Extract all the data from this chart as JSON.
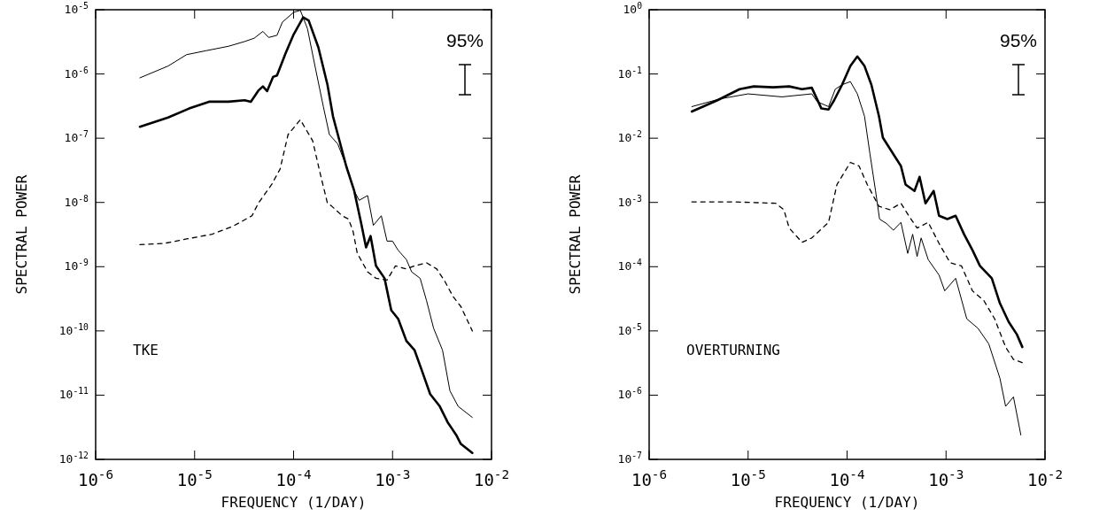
{
  "chart_data": [
    {
      "type": "line",
      "xlabel": "FREQUENCY (1/DAY)",
      "ylabel": "SPECTRAL POWER",
      "log": "xy",
      "xlim": [
        1e-06,
        0.01
      ],
      "ylim": [
        1e-12,
        1e-05
      ],
      "xticks": [
        {
          "value": 1e-06,
          "label": "10$^{-6}$"
        },
        {
          "value": 1e-05,
          "label": "10$^{-5}$"
        },
        {
          "value": 0.0001,
          "label": "10$^{-4}$"
        },
        {
          "value": 0.001,
          "label": "10$^{-3}$"
        },
        {
          "value": 0.01,
          "label": "10$^{-2}$"
        }
      ],
      "yticks": [
        {
          "value": 1e-12,
          "label": "10$^{-12}$"
        },
        {
          "value": 1e-11,
          "label": "10$^{-11}$"
        },
        {
          "value": 1e-10,
          "label": "10$^{-10}$"
        },
        {
          "value": 1e-09,
          "label": "10$^{-9}$"
        },
        {
          "value": 1e-08,
          "label": "10$^{-8}$"
        },
        {
          "value": 1e-07,
          "label": "10$^{-7}$"
        },
        {
          "value": 1e-06,
          "label": "10$^{-6}$"
        },
        {
          "value": 1e-05,
          "label": "10$^{-5}$"
        }
      ],
      "annotations": [
        "95%",
        "TKE"
      ],
      "series": [
        {
          "color": "#000000",
          "x": [
            2.8e-06,
            5.4e-06,
            8.8e-06,
            1.4e-05,
            2.2e-05,
            3.2e-05,
            3.7e-05,
            4.4e-05,
            4.9e-05,
            5.4e-05,
            6.2e-05,
            6.8e-05,
            8.3e-05,
            0.0001,
            0.000125,
            0.000142,
            0.000178,
            0.00022,
            0.00025,
            0.00028,
            0.00034,
            0.00041,
            0.00048,
            0.00054,
            0.0006,
            0.00068,
            0.00083,
            0.00097,
            0.00114,
            0.00138,
            0.00167,
            0.002,
            0.0024,
            0.003,
            0.0036,
            0.0044,
            0.0049,
            0.0064
          ],
          "values": [
            1.51e-07,
            2.1e-07,
            2.9e-07,
            3.7e-07,
            3.7e-07,
            3.9e-07,
            3.7e-07,
            5.5e-07,
            6.4e-07,
            5.4e-07,
            9e-07,
            9.5e-07,
            2.1e-06,
            4.1e-06,
            7.6e-06,
            6.8e-06,
            2.6e-06,
            6.8e-07,
            2.2e-07,
            1.14e-07,
            3.7e-08,
            1.51e-08,
            4.9e-09,
            2e-09,
            3e-09,
            1.03e-09,
            6.6e-10,
            2.1e-10,
            1.54e-10,
            7e-11,
            5e-11,
            2.3e-11,
            1.04e-11,
            6.7e-12,
            3.8e-12,
            2.4e-12,
            1.74e-12,
            1.26e-12
          ]
        },
        {
          "color": "#000000",
          "x": [
            2.8e-06,
            5.4e-06,
            8.3e-06,
            1.3e-05,
            2.2e-05,
            3.2e-05,
            4e-05,
            4.9e-05,
            5.6e-05,
            6.8e-05,
            7.7e-05,
            0.0001,
            0.000117,
            0.000138,
            0.000167,
            0.0002,
            0.00023,
            0.00028,
            0.00034,
            0.00041,
            0.00046,
            0.00056,
            0.00064,
            0.00077,
            0.00088,
            0.001,
            0.00114,
            0.00138,
            0.00156,
            0.0019,
            0.0022,
            0.0026,
            0.0032,
            0.0038,
            0.0046,
            0.0064
          ],
          "values": [
            8.7e-07,
            1.33e-06,
            2e-06,
            2.3e-06,
            2.7e-06,
            3.2e-06,
            3.6e-06,
            4.6e-06,
            3.7e-06,
            4e-06,
            6.4e-06,
            9.1e-06,
            9.8e-06,
            5.1e-06,
            1.19e-06,
            3.1e-07,
            1.14e-07,
            8.1e-08,
            3.7e-08,
            1.51e-08,
            1.08e-08,
            1.28e-08,
            4.4e-09,
            6.2e-09,
            2.5e-09,
            2.5e-09,
            1.8e-09,
            1.29e-09,
            8.3e-10,
            6.6e-10,
            3e-10,
            1.1e-10,
            5e-11,
            1.17e-11,
            6.7e-12,
            4.5e-12
          ]
        },
        {
          "color": "#000000",
          "line_style": "dashed",
          "x": [
            2.8e-06,
            4.9e-06,
            8.3e-06,
            1.5e-05,
            2.4e-05,
            3.8e-05,
            4.4e-05,
            6e-05,
            7.3e-05,
            8.8e-05,
            0.000117,
            0.000156,
            0.000184,
            0.00022,
            0.00024,
            0.00031,
            0.00036,
            0.0004,
            0.00044,
            0.00056,
            0.00068,
            0.00088,
            0.00107,
            0.00138,
            0.00167,
            0.0022,
            0.0028,
            0.0034,
            0.0041,
            0.0049,
            0.0064
          ],
          "values": [
            2.2e-09,
            2.3e-09,
            2.7e-09,
            3.2e-09,
            4.2e-09,
            6.2e-09,
            9.7e-09,
            1.9e-08,
            3.3e-08,
            1.14e-07,
            1.94e-07,
            9.1e-08,
            3e-08,
            9.7e-09,
            8.9e-09,
            6.2e-09,
            5.5e-09,
            3.5e-09,
            1.62e-09,
            8.3e-10,
            6.6e-10,
            6.2e-10,
            1.03e-09,
            9.2e-10,
            1.03e-09,
            1.15e-09,
            9.2e-10,
            5.8e-10,
            3.4e-10,
            2.4e-10,
            1e-10
          ]
        }
      ]
    },
    {
      "type": "line",
      "xlabel": "FREQUENCY (1/DAY)",
      "ylabel": "SPECTRAL POWER",
      "log": "xy",
      "xlim": [
        1e-06,
        0.01
      ],
      "ylim": [
        1e-07,
        1
      ],
      "xticks": [
        {
          "value": 1e-06,
          "label": "10$^{-6}$"
        },
        {
          "value": 1e-05,
          "label": "10$^{-5}$"
        },
        {
          "value": 0.0001,
          "label": "10$^{-4}$"
        },
        {
          "value": 0.001,
          "label": "10$^{-3}$"
        },
        {
          "value": 0.01,
          "label": "10$^{-2}$"
        }
      ],
      "yticks": [
        {
          "value": 1e-07,
          "label": "10$^{-7}$"
        },
        {
          "value": 1e-06,
          "label": "10$^{-6}$"
        },
        {
          "value": 1e-05,
          "label": "10$^{-5}$"
        },
        {
          "value": 0.0001,
          "label": "10$^{-4}$"
        },
        {
          "value": 0.001,
          "label": "10$^{-3}$"
        },
        {
          "value": 0.01,
          "label": "10$^{-2}$"
        },
        {
          "value": 0.1,
          "label": "10$^{-1}$"
        },
        {
          "value": 1,
          "label": "10$^{0}$"
        }
      ],
      "annotations": [
        "95%",
        "OVERTURNING"
      ],
      "series": [
        {
          "color": "#000000",
          "x": [
            2.7e-06,
            4.9e-06,
            8.2e-06,
            1.14e-05,
            1.79e-05,
            2.6e-05,
            3.5e-05,
            4.4e-05,
            5.2e-05,
            5.5e-05,
            6.5e-05,
            7.4e-05,
            8.9e-05,
            0.000108,
            0.000127,
            0.00015,
            0.000176,
            0.00021,
            0.00023,
            0.00029,
            0.00035,
            0.00039,
            0.00048,
            0.00054,
            0.00062,
            0.00075,
            0.00085,
            0.00103,
            0.00125,
            0.00152,
            0.00185,
            0.0022,
            0.0029,
            0.0035,
            0.0043,
            0.0052,
            0.0059
          ],
          "values": [
            0.026,
            0.039,
            0.058,
            0.064,
            0.062,
            0.064,
            0.058,
            0.061,
            0.035,
            0.029,
            0.028,
            0.039,
            0.068,
            0.133,
            0.187,
            0.133,
            0.068,
            0.022,
            0.0102,
            0.0058,
            0.0037,
            0.0019,
            0.00151,
            0.0025,
            0.00097,
            0.00151,
            0.00062,
            0.00055,
            0.00062,
            0.00032,
            0.000181,
            0.000103,
            6.6e-05,
            2.7e-05,
            1.38e-05,
            8.8e-06,
            5.6e-06
          ]
        },
        {
          "color": "#000000",
          "x": [
            2.7e-06,
            5.2e-06,
            1e-05,
            2.2e-05,
            4.4e-05,
            5e-05,
            6.5e-05,
            7.6e-05,
            8.9e-05,
            0.000108,
            0.000127,
            0.00015,
            0.00017,
            0.000194,
            0.000213,
            0.00025,
            0.000294,
            0.00035,
            0.00041,
            0.00046,
            0.00051,
            0.00056,
            0.00066,
            0.00085,
            0.00097,
            0.00125,
            0.00162,
            0.0021,
            0.0027,
            0.0035,
            0.004,
            0.0048,
            0.0057
          ],
          "values": [
            0.031,
            0.041,
            0.049,
            0.044,
            0.049,
            0.037,
            0.031,
            0.058,
            0.068,
            0.076,
            0.049,
            0.022,
            0.0058,
            0.00151,
            0.00055,
            0.00047,
            0.00037,
            0.00049,
            0.000161,
            0.00032,
            0.000144,
            0.00028,
            0.000129,
            7.4e-05,
            4.2e-05,
            6.6e-05,
            1.54e-05,
            1.1e-05,
            6.3e-06,
            1.84e-06,
            6.7e-07,
            9.4e-07,
            2.4e-07
          ]
        },
        {
          "color": "#000000",
          "line_style": "dashed",
          "x": [
            2.7e-06,
            7.2e-06,
            1.9e-05,
            2.3e-05,
            2.6e-05,
            3.5e-05,
            4.4e-05,
            6.5e-05,
            7.9e-05,
            0.000108,
            0.000132,
            0.00016,
            0.00021,
            0.00027,
            0.00035,
            0.00042,
            0.00051,
            0.00066,
            0.00085,
            0.0011,
            0.00143,
            0.00185,
            0.0024,
            0.0031,
            0.004,
            0.0048,
            0.0059
          ],
          "values": [
            0.00102,
            0.00102,
            0.00097,
            0.00077,
            0.0004,
            0.00024,
            0.00028,
            0.00049,
            0.0019,
            0.0042,
            0.0037,
            0.0019,
            0.00087,
            0.00077,
            0.00097,
            0.00062,
            0.0004,
            0.00049,
            0.00023,
            0.000115,
            0.000103,
            4.2e-05,
            3e-05,
            1.54e-05,
            5.6e-06,
            3.6e-06,
            3.2e-06
          ]
        }
      ]
    }
  ]
}
